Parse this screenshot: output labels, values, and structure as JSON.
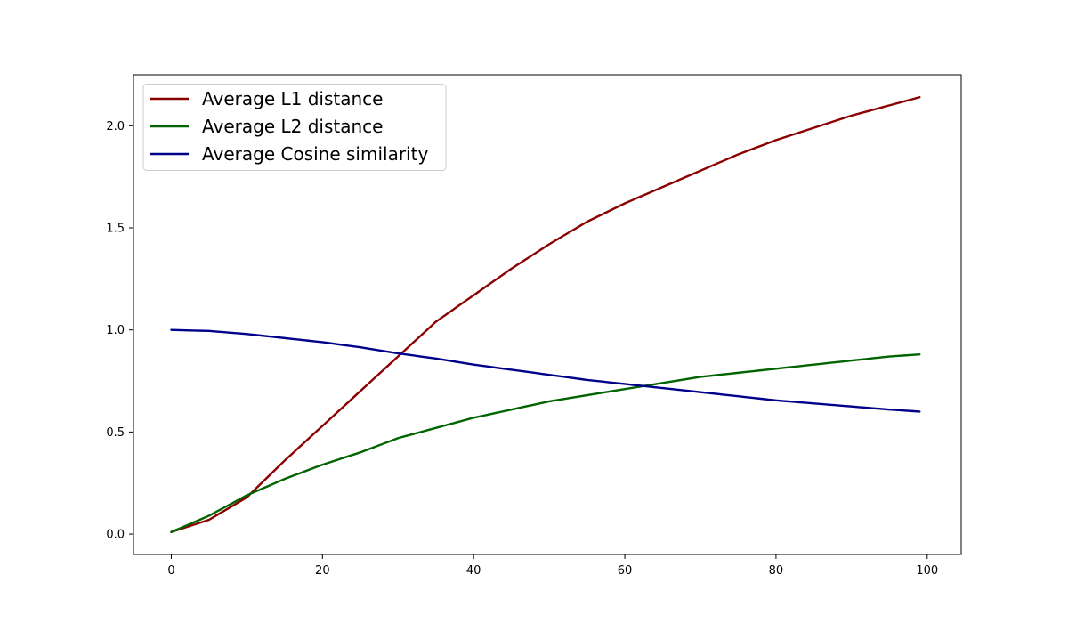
{
  "chart_data": {
    "type": "line",
    "title": "",
    "xlabel": "",
    "ylabel": "",
    "xlim": [
      -5,
      104.5
    ],
    "ylim": [
      -0.1,
      2.25
    ],
    "xticks": [
      0,
      20,
      40,
      60,
      80,
      100
    ],
    "yticks": [
      0.0,
      0.5,
      1.0,
      1.5,
      2.0
    ],
    "xtick_labels": [
      "0",
      "20",
      "40",
      "60",
      "80",
      "100"
    ],
    "ytick_labels": [
      "0.0",
      "0.5",
      "1.0",
      "1.5",
      "2.0"
    ],
    "grid": false,
    "legend_position": "top-left",
    "x": {
      "start": 0,
      "end": 99,
      "step": 1
    },
    "series": [
      {
        "name": "Average L1 distance",
        "color": "#8b0000",
        "keypoints": [
          [
            0,
            0.01
          ],
          [
            5,
            0.07
          ],
          [
            10,
            0.18
          ],
          [
            15,
            0.36
          ],
          [
            20,
            0.53
          ],
          [
            25,
            0.7
          ],
          [
            30,
            0.87
          ],
          [
            35,
            1.04
          ],
          [
            40,
            1.17
          ],
          [
            45,
            1.3
          ],
          [
            50,
            1.42
          ],
          [
            55,
            1.53
          ],
          [
            60,
            1.62
          ],
          [
            65,
            1.7
          ],
          [
            70,
            1.78
          ],
          [
            75,
            1.86
          ],
          [
            80,
            1.93
          ],
          [
            85,
            1.99
          ],
          [
            90,
            2.05
          ],
          [
            95,
            2.1
          ],
          [
            99,
            2.14
          ]
        ]
      },
      {
        "name": "Average L2 distance",
        "color": "#006400",
        "keypoints": [
          [
            0,
            0.01
          ],
          [
            5,
            0.09
          ],
          [
            10,
            0.19
          ],
          [
            15,
            0.27
          ],
          [
            20,
            0.34
          ],
          [
            25,
            0.4
          ],
          [
            30,
            0.47
          ],
          [
            35,
            0.52
          ],
          [
            40,
            0.57
          ],
          [
            45,
            0.61
          ],
          [
            50,
            0.65
          ],
          [
            55,
            0.68
          ],
          [
            60,
            0.71
          ],
          [
            65,
            0.74
          ],
          [
            70,
            0.77
          ],
          [
            75,
            0.79
          ],
          [
            80,
            0.81
          ],
          [
            85,
            0.83
          ],
          [
            90,
            0.85
          ],
          [
            95,
            0.87
          ],
          [
            99,
            0.88
          ]
        ]
      },
      {
        "name": "Average Cosine similarity",
        "color": "#00008b",
        "keypoints": [
          [
            0,
            1.0
          ],
          [
            5,
            0.995
          ],
          [
            10,
            0.98
          ],
          [
            15,
            0.96
          ],
          [
            20,
            0.94
          ],
          [
            25,
            0.915
          ],
          [
            30,
            0.885
          ],
          [
            35,
            0.86
          ],
          [
            40,
            0.83
          ],
          [
            45,
            0.805
          ],
          [
            50,
            0.78
          ],
          [
            55,
            0.755
          ],
          [
            60,
            0.735
          ],
          [
            65,
            0.715
          ],
          [
            70,
            0.695
          ],
          [
            75,
            0.675
          ],
          [
            80,
            0.655
          ],
          [
            85,
            0.64
          ],
          [
            90,
            0.625
          ],
          [
            95,
            0.61
          ],
          [
            99,
            0.6
          ]
        ]
      }
    ]
  }
}
